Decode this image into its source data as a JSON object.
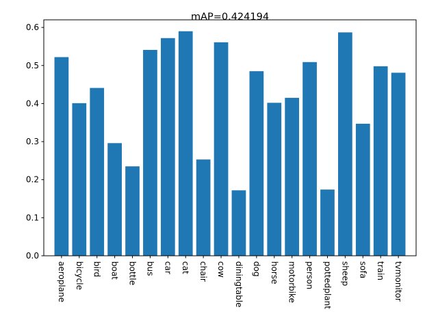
{
  "chart_data": {
    "type": "bar",
    "title": "mAP=0.424194",
    "xlabel": "",
    "ylabel": "",
    "ylim": [
      0,
      0.62
    ],
    "yticks": [
      0.0,
      0.1,
      0.2,
      0.3,
      0.4,
      0.5,
      0.6
    ],
    "ytick_labels": [
      "0.0",
      "0.1",
      "0.2",
      "0.3",
      "0.4",
      "0.5",
      "0.6"
    ],
    "grid": false,
    "bar_color": "#1f77b4",
    "categories": [
      "aeroplane",
      "bicycle",
      "bird",
      "boat",
      "bottle",
      "bus",
      "car",
      "cat",
      "chair",
      "cow",
      "diningtable",
      "dog",
      "horse",
      "motorbike",
      "person",
      "pottedplant",
      "sheep",
      "sofa",
      "train",
      "tvmonitor"
    ],
    "values": [
      0.522,
      0.401,
      0.441,
      0.296,
      0.235,
      0.541,
      0.572,
      0.59,
      0.253,
      0.561,
      0.172,
      0.485,
      0.402,
      0.415,
      0.509,
      0.174,
      0.587,
      0.347,
      0.498,
      0.481
    ]
  }
}
